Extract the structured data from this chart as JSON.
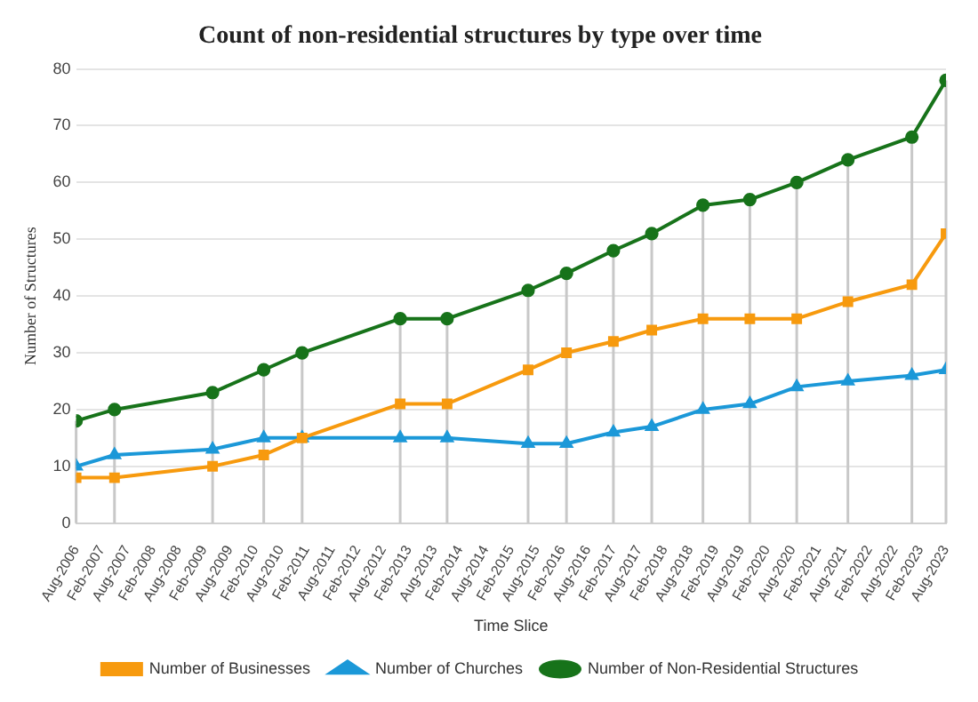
{
  "chart_data": {
    "type": "line",
    "title": "Count of non-residential structures by type over time",
    "xlabel": "Time Slice",
    "ylabel": "Number of Structures",
    "x": [
      "2006-08",
      "2007-05",
      "2009-04",
      "2010-04",
      "2011-01",
      "2012-12",
      "2013-11",
      "2015-06",
      "2016-03",
      "2017-02",
      "2017-11",
      "2018-11",
      "2019-10",
      "2020-09",
      "2021-09",
      "2022-12",
      "2023-08"
    ],
    "series": [
      {
        "name": "Number of Businesses",
        "color": "#f79a0e",
        "marker": "square",
        "values": [
          8,
          8,
          10,
          12,
          15,
          21,
          21,
          27,
          30,
          32,
          34,
          36,
          36,
          36,
          39,
          42,
          51
        ]
      },
      {
        "name": "Number of Churches",
        "color": "#1b98d8",
        "marker": "triangle",
        "values": [
          10,
          12,
          13,
          15,
          15,
          15,
          15,
          14,
          14,
          16,
          17,
          20,
          21,
          24,
          25,
          26,
          27
        ]
      },
      {
        "name": "Number of Non-Residential Structures",
        "color": "#17731a",
        "marker": "circle",
        "values": [
          18,
          20,
          23,
          27,
          30,
          36,
          36,
          41,
          44,
          48,
          51,
          56,
          57,
          60,
          64,
          68,
          78
        ]
      }
    ],
    "xlim": [
      "2006-08",
      "2023-08"
    ],
    "xticks": [
      {
        "value": "2006-08",
        "label": "Aug-2006"
      },
      {
        "value": "2007-02",
        "label": "Feb-2007"
      },
      {
        "value": "2007-08",
        "label": "Aug-2007"
      },
      {
        "value": "2008-02",
        "label": "Feb-2008"
      },
      {
        "value": "2008-08",
        "label": "Aug-2008"
      },
      {
        "value": "2009-02",
        "label": "Feb-2009"
      },
      {
        "value": "2009-08",
        "label": "Aug-2009"
      },
      {
        "value": "2010-02",
        "label": "Feb-2010"
      },
      {
        "value": "2010-08",
        "label": "Aug-2010"
      },
      {
        "value": "2011-02",
        "label": "Feb-2011"
      },
      {
        "value": "2011-08",
        "label": "Aug-2011"
      },
      {
        "value": "2012-02",
        "label": "Feb-2012"
      },
      {
        "value": "2012-08",
        "label": "Aug-2012"
      },
      {
        "value": "2013-02",
        "label": "Feb-2013"
      },
      {
        "value": "2013-08",
        "label": "Aug-2013"
      },
      {
        "value": "2014-02",
        "label": "Feb-2014"
      },
      {
        "value": "2014-08",
        "label": "Aug-2014"
      },
      {
        "value": "2015-02",
        "label": "Feb-2015"
      },
      {
        "value": "2015-08",
        "label": "Aug-2015"
      },
      {
        "value": "2016-02",
        "label": "Feb-2016"
      },
      {
        "value": "2016-08",
        "label": "Aug-2016"
      },
      {
        "value": "2017-02",
        "label": "Feb-2017"
      },
      {
        "value": "2017-08",
        "label": "Aug-2017"
      },
      {
        "value": "2018-02",
        "label": "Feb-2018"
      },
      {
        "value": "2018-08",
        "label": "Aug-2018"
      },
      {
        "value": "2019-02",
        "label": "Feb-2019"
      },
      {
        "value": "2019-08",
        "label": "Aug-2019"
      },
      {
        "value": "2020-02",
        "label": "Feb-2020"
      },
      {
        "value": "2020-08",
        "label": "Aug-2020"
      },
      {
        "value": "2021-02",
        "label": "Feb-2021"
      },
      {
        "value": "2021-08",
        "label": "Aug-2021"
      },
      {
        "value": "2022-02",
        "label": "Feb-2022"
      },
      {
        "value": "2022-08",
        "label": "Aug-2022"
      },
      {
        "value": "2023-02",
        "label": "Feb-2023"
      },
      {
        "value": "2023-08",
        "label": "Aug-2023"
      }
    ],
    "ylim": [
      0,
      80
    ],
    "yticks": [
      0,
      10,
      20,
      30,
      40,
      50,
      60,
      70,
      80
    ],
    "ref_lines": [
      {
        "axis": "x",
        "value": "2006-08",
        "color": "#c8c8c8"
      },
      {
        "axis": "x",
        "value": "2007-05",
        "color": "#c8c8c8"
      },
      {
        "axis": "x",
        "value": "2009-04",
        "color": "#c8c8c8"
      },
      {
        "axis": "x",
        "value": "2010-04",
        "color": "#c8c8c8"
      },
      {
        "axis": "x",
        "value": "2011-01",
        "color": "#c8c8c8"
      },
      {
        "axis": "x",
        "value": "2012-12",
        "color": "#c8c8c8"
      },
      {
        "axis": "x",
        "value": "2013-11",
        "color": "#c8c8c8"
      },
      {
        "axis": "x",
        "value": "2015-06",
        "color": "#c8c8c8"
      },
      {
        "axis": "x",
        "value": "2016-03",
        "color": "#c8c8c8"
      },
      {
        "axis": "x",
        "value": "2017-02",
        "color": "#c8c8c8"
      },
      {
        "axis": "x",
        "value": "2017-11",
        "color": "#c8c8c8"
      },
      {
        "axis": "x",
        "value": "2018-11",
        "color": "#c8c8c8"
      },
      {
        "axis": "x",
        "value": "2019-10",
        "color": "#c8c8c8"
      },
      {
        "axis": "x",
        "value": "2020-09",
        "color": "#c8c8c8"
      },
      {
        "axis": "x",
        "value": "2021-09",
        "color": "#c8c8c8"
      },
      {
        "axis": "x",
        "value": "2022-12",
        "color": "#c8c8c8"
      },
      {
        "axis": "x",
        "value": "2023-08",
        "color": "#c8c8c8"
      }
    ],
    "grid": "y",
    "legend": "bottom",
    "line_style": "solid"
  }
}
